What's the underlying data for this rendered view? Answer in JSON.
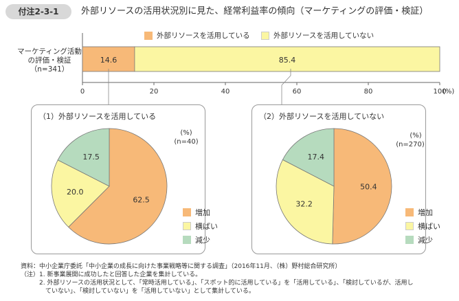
{
  "header": {
    "label": "付注2-3-1",
    "title": "外部リソースの活用状況別に見た、経常利益率の傾向（マーケティングの評価・検証）"
  },
  "colors": {
    "using": "#f7b978",
    "not_using": "#fbf6a2",
    "increase": "#f7b978",
    "flat": "#fbf6a2",
    "decrease": "#b6dbbe",
    "header_bg": "#d8d8d8"
  },
  "chart_data": [
    {
      "type": "bar",
      "orientation": "horizontal-stacked",
      "categories": [
        "マーケティング活動の評価・検証（n=341）"
      ],
      "category_lines": [
        "マーケティング活動",
        "の評価・検証",
        "（n=341）"
      ],
      "series": [
        {
          "name": "外部リソースを活用している",
          "values": [
            14.6
          ]
        },
        {
          "name": "外部リソースを活用していない",
          "values": [
            85.4
          ]
        }
      ],
      "xlim": [
        0,
        100
      ],
      "xticks": [
        "0",
        "20",
        "40",
        "60",
        "80",
        "100"
      ],
      "x_unit": "(%)",
      "legend_position": "top"
    },
    {
      "type": "pie",
      "title": "（1）外部リソースを活用している",
      "unit": "(%)",
      "n": "(n=40)",
      "labels": [
        "増加",
        "横ばい",
        "減少"
      ],
      "values": [
        62.5,
        20.0,
        17.5
      ],
      "value_labels": [
        "62.5",
        "20.0",
        "17.5"
      ]
    },
    {
      "type": "pie",
      "title": "（2）外部リソースを活用していない",
      "unit": "(%)",
      "n": "(n=270)",
      "labels": [
        "増加",
        "横ばい",
        "減少"
      ],
      "values": [
        50.4,
        32.2,
        17.4
      ],
      "value_labels": [
        "50.4",
        "32.2",
        "17.4"
      ]
    }
  ],
  "footnotes": [
    "資料：中小企業庁委託「中小企業の成長に向けた事業戦略等に関する調査」（2016年11月、（株）野村総合研究所）",
    "（注）1. 新事業展開に成功したと回答した企業を集計している。",
    "　　　2. 外部リソースの活用状況として、「常時活用している」、「スポット的に活用している」を「活用している」、「検討しているが、活用し",
    "　　　　ていない」、「検討していない」を「活用していない」として集計している。"
  ]
}
